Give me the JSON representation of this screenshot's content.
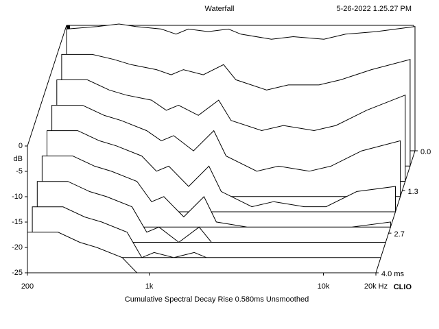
{
  "chart_data": {
    "type": "waterfall",
    "title": "Waterfall",
    "date": "5-26-2022 1.25.27 PM",
    "caption": "Cumulative Spectral Decay   Rise 0.580ms   Unsmoothed",
    "brand": "CLIO",
    "ylabel": "dB",
    "log_x": true,
    "color": "#000000",
    "x": [
      200,
      300,
      400,
      500,
      700,
      850,
      1000,
      1300,
      1700,
      2000,
      3000,
      4000,
      6000,
      8000,
      12000,
      20000
    ],
    "xlim": [
      200,
      20000
    ],
    "xticks": [
      {
        "value": 200,
        "label": "200"
      },
      {
        "value": 1000,
        "label": "1k"
      },
      {
        "value": 10000,
        "label": "10k"
      },
      {
        "value": 20000,
        "label": "20k Hz"
      }
    ],
    "ylim": [
      -25,
      0
    ],
    "yticks": [
      0,
      -5,
      -10,
      -15,
      -20,
      -25
    ],
    "zlim": [
      0,
      4
    ],
    "zticks": [
      {
        "value": 0,
        "label": "0.0"
      },
      1.3,
      2.7,
      {
        "value": 4,
        "label": "4.0 ms"
      }
    ],
    "series": [
      {
        "time": 0,
        "values": [
          -1,
          -0.5,
          0,
          -0.5,
          -1,
          -2,
          -1,
          -1.5,
          -1,
          -2,
          -3,
          -2.5,
          -3,
          -2,
          -1.5,
          -0.5
        ]
      },
      {
        "time": 0.5,
        "values": [
          -3,
          -3,
          -4,
          -5,
          -6,
          -7,
          -6,
          -7,
          -5,
          -8,
          -10,
          -9,
          -9,
          -8,
          -6,
          -4
        ]
      },
      {
        "time": 1,
        "values": [
          -5,
          -5,
          -7,
          -8,
          -9,
          -11,
          -10,
          -12,
          -9,
          -13,
          -15,
          -14,
          -15,
          -14,
          -11,
          -8
        ]
      },
      {
        "time": 1.5,
        "values": [
          -7,
          -7,
          -9,
          -10,
          -12,
          -14,
          -13,
          -16,
          -12,
          -17,
          -20,
          -19,
          -20,
          -19,
          -16,
          -14
        ]
      },
      {
        "time": 2,
        "values": [
          -9,
          -9,
          -11,
          -12,
          -14,
          -17,
          -16,
          -20,
          -16,
          -21,
          -24,
          -23,
          -24,
          -24,
          -21,
          -20
        ]
      },
      {
        "time": 2.5,
        "values": [
          -11,
          -11,
          -13,
          -14,
          -16,
          -20,
          -19,
          -23,
          -19,
          -24,
          -25,
          -25,
          -25,
          -25,
          -25,
          -24
        ]
      },
      {
        "time": 3,
        "values": [
          -13,
          -13,
          -15,
          -16,
          -18,
          -23,
          -22,
          -25,
          -22,
          -25,
          -25,
          -25,
          -25,
          -25,
          -25,
          -25
        ]
      },
      {
        "time": 3.5,
        "values": [
          -15,
          -15,
          -17,
          -18,
          -20,
          -25,
          -24,
          -25,
          -24,
          -25,
          -25,
          -25,
          -25,
          -25,
          -25,
          -25
        ]
      },
      {
        "time": 4,
        "values": [
          -17,
          -17,
          -19,
          -20,
          -22,
          -25,
          -25,
          -25,
          -25,
          -25,
          -25,
          -25,
          -25,
          -25,
          -25,
          -25
        ]
      }
    ]
  }
}
